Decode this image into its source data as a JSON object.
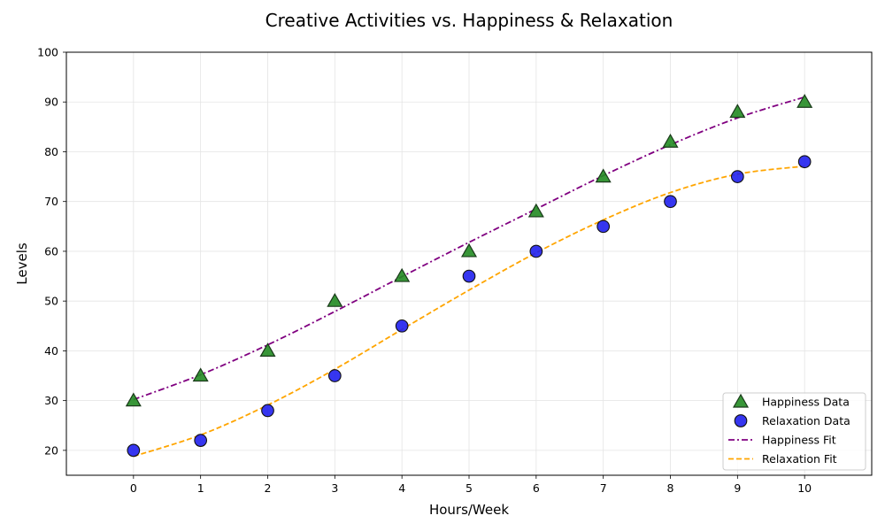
{
  "chart_data": {
    "type": "scatter",
    "title": "Creative Activities vs. Happiness & Relaxation",
    "xlabel": "Hours/Week",
    "ylabel": "Levels",
    "xlim": [
      -1,
      11
    ],
    "ylim": [
      15,
      100
    ],
    "xticks": [
      0,
      1,
      2,
      3,
      4,
      5,
      6,
      7,
      8,
      9,
      10
    ],
    "yticks": [
      20,
      30,
      40,
      50,
      60,
      70,
      80,
      90,
      100
    ],
    "grid": true,
    "legend_position": "lower-right",
    "series": [
      {
        "name": "Happiness Data",
        "kind": "scatter",
        "marker": "triangle",
        "color": "#228b22",
        "x": [
          0,
          1,
          2,
          3,
          4,
          5,
          6,
          7,
          8,
          9,
          10
        ],
        "y": [
          30,
          35,
          40,
          50,
          55,
          60,
          68,
          75,
          82,
          88,
          90
        ]
      },
      {
        "name": "Relaxation Data",
        "kind": "scatter",
        "marker": "circle",
        "color": "#1a1aee",
        "x": [
          0,
          1,
          2,
          3,
          4,
          5,
          6,
          7,
          8,
          9,
          10
        ],
        "y": [
          20,
          22,
          28,
          35,
          45,
          55,
          60,
          65,
          70,
          75,
          78
        ]
      },
      {
        "name": "Happiness Fit",
        "kind": "line",
        "dash": "dashdot",
        "color": "#800080",
        "x": [
          0,
          1,
          2,
          3,
          4,
          5,
          6,
          7,
          8,
          9,
          10
        ],
        "y": [
          30.2,
          35.2,
          41.2,
          47.9,
          54.9,
          61.8,
          68.5,
          75.2,
          81.4,
          86.8,
          91.0
        ]
      },
      {
        "name": "Relaxation Fit",
        "kind": "line",
        "dash": "dashed",
        "color": "#ffa500",
        "x": [
          0,
          1,
          2,
          3,
          4,
          5,
          6,
          7,
          8,
          9,
          10
        ],
        "y": [
          18.8,
          23.1,
          29.1,
          36.3,
          44.3,
          52.2,
          59.7,
          66.3,
          71.8,
          75.5,
          77.1
        ]
      }
    ]
  }
}
